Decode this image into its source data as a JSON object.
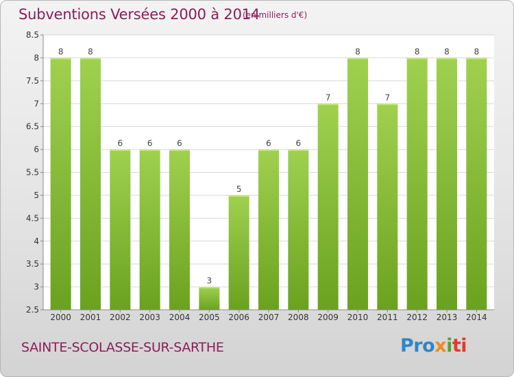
{
  "header": {
    "title": "Subventions Versées 2000 à 2014",
    "subtitle": "(en milliers d'€)"
  },
  "footer": {
    "place": "SAINTE-SCOLASSE-SUR-SARTHE",
    "logo_parts": [
      "Pro",
      "x",
      "i",
      "ti"
    ]
  },
  "colors": {
    "title": "#8c1d57",
    "bar_light": "#9fd14f",
    "bar_dark": "#6aa21f",
    "grid": "#d8d8d8"
  },
  "chart_data": {
    "type": "bar",
    "title": "Subventions Versées 2000 à 2014",
    "subtitle": "(en milliers d'€)",
    "categories": [
      "2000",
      "2001",
      "2002",
      "2003",
      "2004",
      "2005",
      "2006",
      "2007",
      "2008",
      "2009",
      "2010",
      "2011",
      "2012",
      "2013",
      "2014"
    ],
    "values": [
      8,
      8,
      6,
      6,
      6,
      3,
      5,
      6,
      6,
      7,
      8,
      7,
      8,
      8,
      8
    ],
    "y_ticks": [
      "2.5",
      "3",
      "3.5",
      "4",
      "4.5",
      "5",
      "5.5",
      "6",
      "6.5",
      "7",
      "7.5",
      "8",
      "8.5"
    ],
    "ylim": [
      2.5,
      8.5
    ],
    "xlabel": "",
    "ylabel": "",
    "grid": true,
    "legend": "none"
  }
}
